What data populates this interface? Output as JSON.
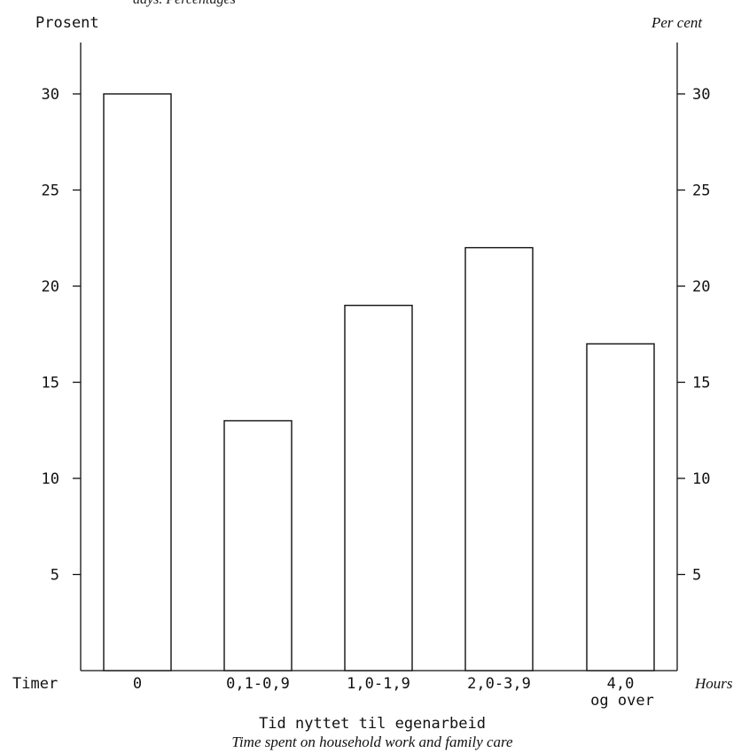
{
  "chart_data": {
    "type": "bar",
    "title_fragment": "days. Percentages",
    "ylabel_left": "Prosent",
    "ylabel_right": "Per cent",
    "xlabel_left": "Timer",
    "xlabel_right": "Hours",
    "xtitle": "Tid nyttet til egenarbeid",
    "xtitle_en": "Time spent on household work and family care",
    "categories": [
      "0",
      "0,1-0,9",
      "1,0-1,9",
      "2,0-3,9",
      "4,0"
    ],
    "category_second_lines": [
      "",
      "",
      "",
      "",
      "og over"
    ],
    "values": [
      30,
      13,
      19,
      22,
      17
    ],
    "yticks": [
      "5",
      "10",
      "15",
      "20",
      "25",
      "30"
    ],
    "ytick_values": [
      5,
      10,
      15,
      20,
      25,
      30
    ],
    "ylim": [
      0,
      32
    ]
  }
}
